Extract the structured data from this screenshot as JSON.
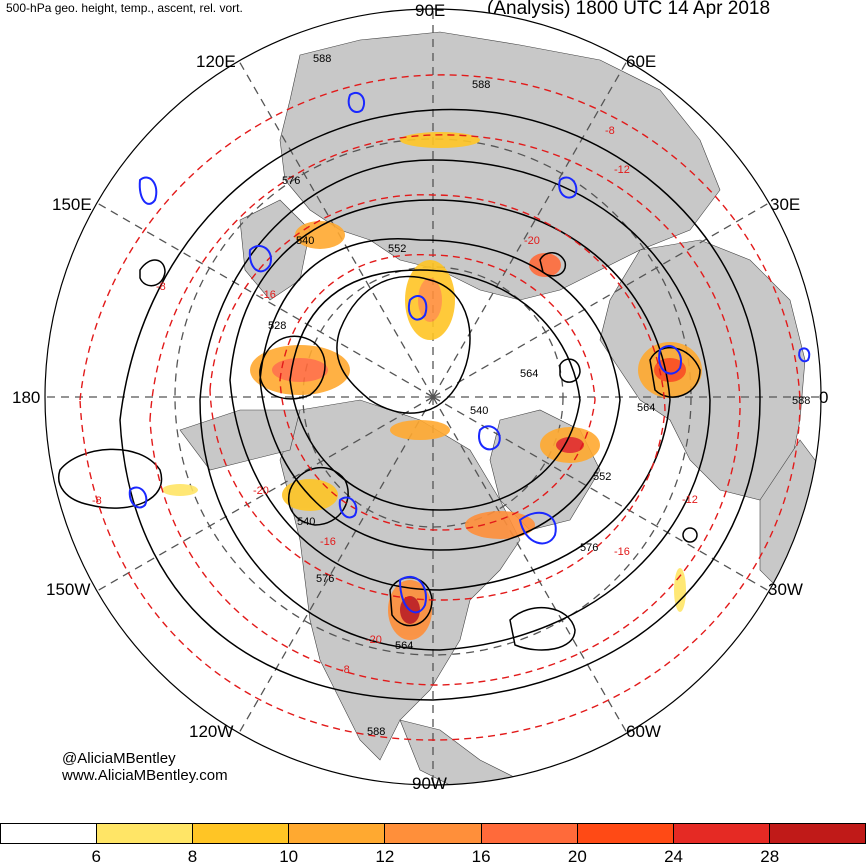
{
  "header": {
    "product": "500-hPa geo. height, temp., ascent, rel. vort.",
    "valid_time": "(Analysis) 1800 UTC 14 Apr 2018"
  },
  "longitude_labels": {
    "deg_90e": "90E",
    "deg_120e": "120E",
    "deg_60e": "60E",
    "deg_150e": "150E",
    "deg_30e": "30E",
    "deg_180": "180",
    "deg_0": "0",
    "deg_150w": "150W",
    "deg_30w": "30W",
    "deg_120w": "120W",
    "deg_60w": "60W",
    "deg_90w": "90W"
  },
  "height_contour_labels": [
    "588",
    "588",
    "576",
    "540",
    "552",
    "528",
    "564",
    "540",
    "552",
    "540",
    "576",
    "576",
    "564",
    "564",
    "588",
    "588"
  ],
  "temperature_contour_labels": [
    "-8",
    "-12",
    "-20",
    "-16",
    "-8",
    "-20",
    "-16",
    "-12",
    "-16",
    "-8",
    "-20",
    "-8"
  ],
  "credit": {
    "handle": "@AliciaMBentley",
    "site": "www.AliciaMBentley.com"
  },
  "colorbar": {
    "colors": [
      "#ffffff",
      "#ffe566",
      "#ffc525",
      "#ffa930",
      "#ff8f3a",
      "#ff6a3a",
      "#ff4a15",
      "#e52a24",
      "#c01a18"
    ],
    "tick_labels": [
      "6",
      "8",
      "10",
      "12",
      "16",
      "20",
      "24",
      "28"
    ]
  },
  "colors": {
    "land": "#c8c8c8",
    "height_contour": "#000000",
    "temp_contour": "#e21a1a",
    "vorticity": "#1a28ff",
    "grid": "#555555"
  }
}
